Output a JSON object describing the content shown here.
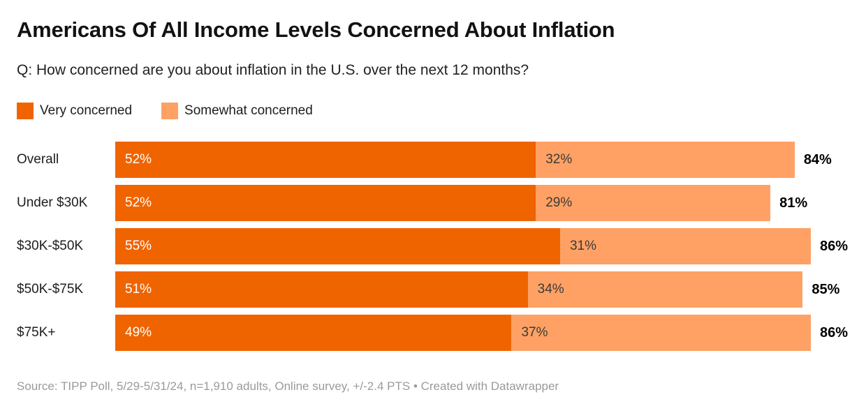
{
  "header": {
    "title": "Americans Of All Income Levels Concerned About Inflation",
    "subtitle": "Q: How concerned are you about inflation in the U.S. over the next 12 months?"
  },
  "legend": {
    "items": [
      {
        "label": "Very concerned",
        "color": "#f06400"
      },
      {
        "label": "Somewhat concerned",
        "color": "#ffa164"
      }
    ]
  },
  "chart_data": {
    "type": "bar",
    "stacked": true,
    "orientation": "horizontal",
    "title": "Americans Of All Income Levels Concerned About Inflation",
    "subtitle": "Q: How concerned are you about inflation in the U.S. over the next 12 months?",
    "categories": [
      "Overall",
      "Under $30K",
      "$30K-$50K",
      "$50K-$75K",
      "$75K+"
    ],
    "series": [
      {
        "name": "Very concerned",
        "color": "#f06400",
        "values": [
          52,
          52,
          55,
          51,
          49
        ]
      },
      {
        "name": "Somewhat concerned",
        "color": "#ffa164",
        "values": [
          32,
          29,
          31,
          34,
          37
        ]
      }
    ],
    "totals": [
      84,
      81,
      86,
      85,
      86
    ],
    "value_suffix": "%",
    "xlim": [
      0,
      86
    ],
    "grid": false,
    "legend_position": "top",
    "bar_value_labels": "inside-start",
    "total_labels": "right-of-bar-bold"
  },
  "colors": {
    "very_concerned": "#f06400",
    "somewhat_concerned": "#ffa164",
    "title_text": "#121212",
    "body_text": "#1d1d1d",
    "label_on_dark": "#ffffff",
    "label_on_light": "#3a3a3a",
    "total_text": "#000000",
    "source_text": "#9a9a9a",
    "background": "#ffffff"
  },
  "footer": {
    "source": "Source: TIPP Poll, 5/29-5/31/24, n=1,910 adults, Online survey, +/-2.4 PTS • Created with Datawrapper"
  }
}
